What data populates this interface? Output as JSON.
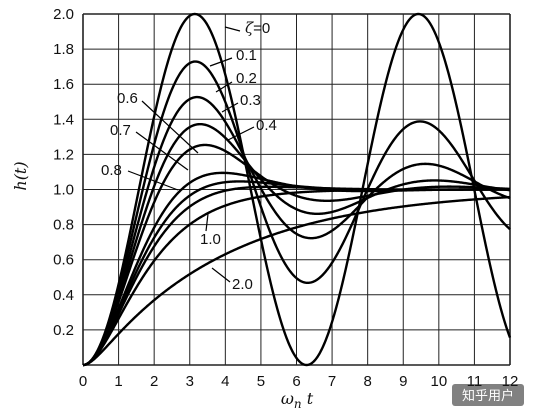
{
  "chart_data": {
    "type": "line",
    "title": "",
    "xlabel": "ω_n t",
    "ylabel": "h(t)",
    "xlim": [
      0,
      12
    ],
    "ylim": [
      0,
      2.0
    ],
    "grid": true,
    "x_ticks": [
      "0",
      "1",
      "2",
      "3",
      "4",
      "5",
      "6",
      "7",
      "8",
      "9",
      "10",
      "11",
      "12"
    ],
    "y_ticks": [
      "0.2",
      "0.4",
      "0.6",
      "0.8",
      "1.0",
      "1.2",
      "1.4",
      "1.6",
      "1.8",
      "2.0"
    ],
    "series": [
      {
        "name": "ζ=0",
        "zeta": 0.0
      },
      {
        "name": "0.1",
        "zeta": 0.1
      },
      {
        "name": "0.2",
        "zeta": 0.2
      },
      {
        "name": "0.3",
        "zeta": 0.3
      },
      {
        "name": "0.4",
        "zeta": 0.4
      },
      {
        "name": "0.6",
        "zeta": 0.6
      },
      {
        "name": "0.7",
        "zeta": 0.7
      },
      {
        "name": "0.8",
        "zeta": 0.8
      },
      {
        "name": "1.0",
        "zeta": 1.0
      },
      {
        "name": "2.0",
        "zeta": 2.0
      }
    ],
    "curve_function": "h(t) = 1 - e^(-ζ ω_n t) [cos(ω_d t) + ζ/√(1-ζ²) sin(ω_d t)], ω_d = ω_n √(1-ζ²); critically and over-damped forms for ζ ≥ 1"
  },
  "watermark": "知乎用户"
}
